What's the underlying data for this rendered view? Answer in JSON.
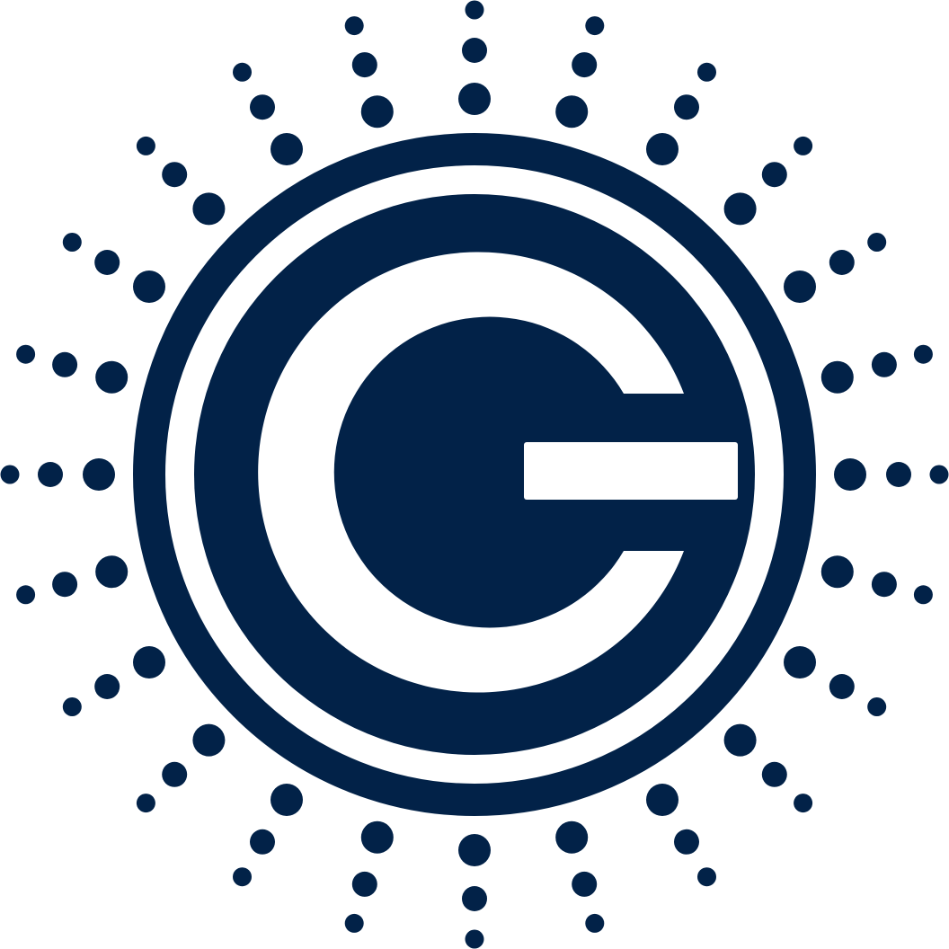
{
  "logo": {
    "name": "g-sunburst-logo",
    "colors": {
      "mark": "#022248",
      "background": "#ffffff"
    }
  }
}
